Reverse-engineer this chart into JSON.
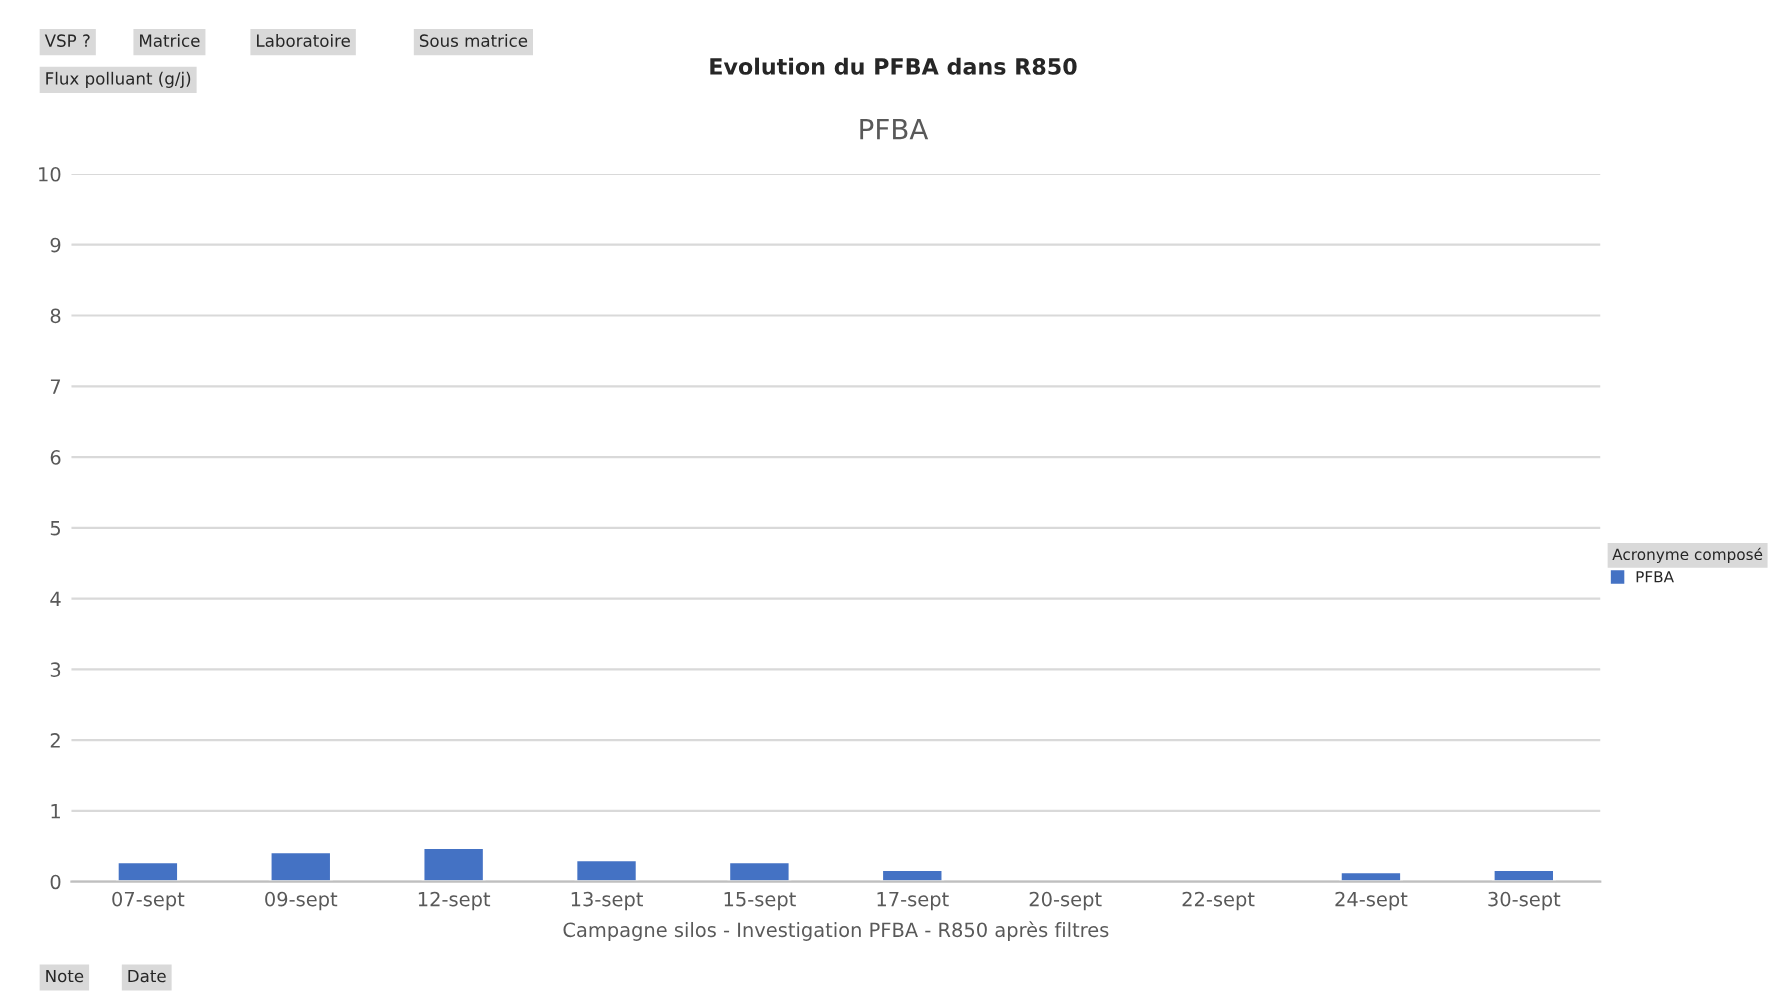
{
  "chart_data": {
    "type": "bar",
    "title": "Evolution du PFBA dans R850",
    "subtitle": "PFBA",
    "xlabel": "Campagne silos - Investigation PFBA - R850 après filtres",
    "ylabel": "Flux polluant (g/j)",
    "legend_title": "Acronyme composé",
    "categories": [
      "07-sept",
      "09-sept",
      "12-sept",
      "13-sept",
      "15-sept",
      "17-sept",
      "20-sept",
      "22-sept",
      "24-sept",
      "30-sept"
    ],
    "series": [
      {
        "name": "PFBA",
        "color": "#4472c4",
        "values": [
          0.28,
          0.42,
          0.48,
          0.31,
          0.28,
          0.17,
          null,
          null,
          0.14,
          0.17
        ]
      }
    ],
    "ylim": [
      0,
      10
    ],
    "yticks": [
      0,
      1,
      2,
      3,
      4,
      5,
      6,
      7,
      8,
      9,
      10
    ],
    "grid": "y",
    "legend": "right",
    "annotations": [
      "VSP ?",
      "Matrice",
      "Laboratoire",
      "Sous matrice",
      "Note",
      "Date"
    ]
  }
}
